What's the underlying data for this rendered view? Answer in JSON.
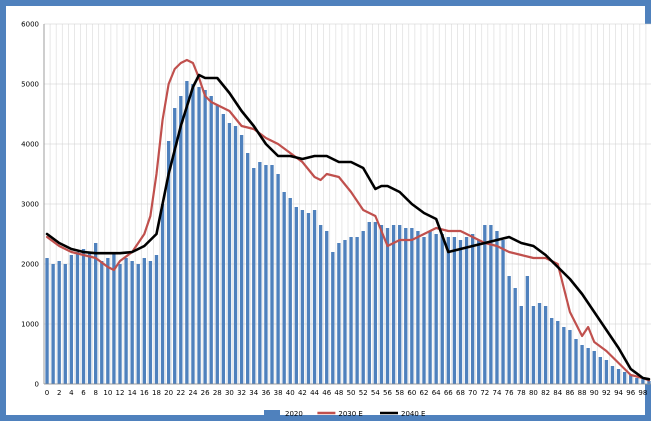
{
  "chart_data": {
    "type": "bar+line",
    "title": "",
    "xlabel": "",
    "ylabel": "",
    "ylim": [
      0,
      6000
    ],
    "yticks": [
      0,
      1000,
      2000,
      3000,
      4000,
      5000,
      6000
    ],
    "xlim": [
      0,
      99
    ],
    "xtick_labels": [
      "0",
      "2",
      "4",
      "6",
      "8",
      "10",
      "12",
      "14",
      "16",
      "18",
      "20",
      "22",
      "24",
      "26",
      "28",
      "30",
      "32",
      "34",
      "36",
      "38",
      "40",
      "42",
      "44",
      "46",
      "48",
      "50",
      "52",
      "54",
      "56",
      "58",
      "60",
      "62",
      "64",
      "66",
      "68",
      "70",
      "72",
      "74",
      "76",
      "78",
      "80",
      "82",
      "84",
      "86",
      "88",
      "90",
      "92",
      "94",
      "96",
      "98"
    ],
    "grid": true,
    "legend_position": "bottom",
    "series": [
      {
        "name": "2020",
        "kind": "bar",
        "color": "#4f81bd",
        "x": [
          0,
          1,
          2,
          3,
          4,
          5,
          6,
          7,
          8,
          9,
          10,
          11,
          12,
          13,
          14,
          15,
          16,
          17,
          18,
          19,
          20,
          21,
          22,
          23,
          24,
          25,
          26,
          27,
          28,
          29,
          30,
          31,
          32,
          33,
          34,
          35,
          36,
          37,
          38,
          39,
          40,
          41,
          42,
          43,
          44,
          45,
          46,
          47,
          48,
          49,
          50,
          51,
          52,
          53,
          54,
          55,
          56,
          57,
          58,
          59,
          60,
          61,
          62,
          63,
          64,
          65,
          66,
          67,
          68,
          69,
          70,
          71,
          72,
          73,
          74,
          75,
          76,
          77,
          78,
          79,
          80,
          81,
          82,
          83,
          84,
          85,
          86,
          87,
          88,
          89,
          90,
          91,
          92,
          93,
          94,
          95,
          96,
          97,
          98,
          99
        ],
        "values": [
          2100,
          2000,
          2050,
          2000,
          2150,
          2200,
          2250,
          2200,
          2350,
          2050,
          2100,
          2200,
          2000,
          2100,
          2050,
          2000,
          2100,
          2050,
          2150,
          3000,
          4050,
          4600,
          4800,
          5050,
          5000,
          4950,
          4900,
          4800,
          4650,
          4500,
          4350,
          4300,
          4150,
          3850,
          3600,
          3700,
          3650,
          3650,
          3500,
          3200,
          3100,
          2950,
          2900,
          2850,
          2900,
          2650,
          2550,
          2200,
          2350,
          2400,
          2450,
          2450,
          2550,
          2700,
          2700,
          2650,
          2600,
          2650,
          2650,
          2600,
          2600,
          2550,
          2450,
          2550,
          2500,
          2500,
          2450,
          2450,
          2400,
          2450,
          2500,
          2400,
          2650,
          2650,
          2550,
          2400,
          1800,
          1600,
          1300,
          1800,
          1300,
          1350,
          1300,
          1100,
          1050,
          950,
          900,
          750,
          650,
          600,
          550,
          450,
          400,
          300,
          250,
          200,
          150,
          100,
          80,
          50
        ]
      },
      {
        "name": "2030 E",
        "kind": "line",
        "color": "#c0504d",
        "x": [
          0,
          2,
          4,
          6,
          8,
          10,
          11,
          12,
          14,
          16,
          17,
          18,
          19,
          20,
          21,
          22,
          23,
          24,
          25,
          26,
          27,
          28,
          30,
          32,
          34,
          36,
          38,
          40,
          42,
          44,
          45,
          46,
          48,
          50,
          52,
          54,
          56,
          57,
          58,
          60,
          62,
          64,
          66,
          68,
          70,
          72,
          74,
          76,
          78,
          80,
          82,
          84,
          86,
          88,
          89,
          90,
          92,
          94,
          96,
          98,
          99
        ],
        "values": [
          2450,
          2300,
          2200,
          2150,
          2100,
          1950,
          1900,
          2050,
          2200,
          2500,
          2800,
          3500,
          4400,
          5000,
          5250,
          5350,
          5400,
          5350,
          5100,
          4800,
          4700,
          4650,
          4550,
          4300,
          4250,
          4100,
          4000,
          3850,
          3700,
          3450,
          3400,
          3500,
          3450,
          3200,
          2900,
          2800,
          2300,
          2350,
          2400,
          2400,
          2500,
          2600,
          2550,
          2550,
          2450,
          2350,
          2300,
          2200,
          2150,
          2100,
          2100,
          2000,
          1200,
          800,
          950,
          700,
          550,
          350,
          150,
          100,
          60
        ]
      },
      {
        "name": "2040 E",
        "kind": "line",
        "color": "#000000",
        "x": [
          0,
          2,
          4,
          6,
          8,
          10,
          12,
          14,
          16,
          18,
          20,
          22,
          24,
          25,
          26,
          28,
          30,
          32,
          34,
          36,
          38,
          40,
          42,
          44,
          46,
          48,
          50,
          52,
          54,
          55,
          56,
          58,
          60,
          62,
          64,
          66,
          68,
          70,
          72,
          74,
          76,
          78,
          80,
          82,
          84,
          86,
          88,
          90,
          92,
          94,
          96,
          98,
          99
        ],
        "values": [
          2500,
          2350,
          2250,
          2200,
          2180,
          2180,
          2180,
          2200,
          2300,
          2500,
          3500,
          4300,
          4950,
          5150,
          5100,
          5100,
          4850,
          4550,
          4300,
          4000,
          3800,
          3800,
          3750,
          3800,
          3800,
          3700,
          3700,
          3600,
          3250,
          3300,
          3300,
          3200,
          3000,
          2850,
          2750,
          2200,
          2250,
          2300,
          2350,
          2400,
          2450,
          2350,
          2300,
          2150,
          1950,
          1750,
          1500,
          1200,
          900,
          600,
          250,
          100,
          80
        ]
      }
    ]
  }
}
